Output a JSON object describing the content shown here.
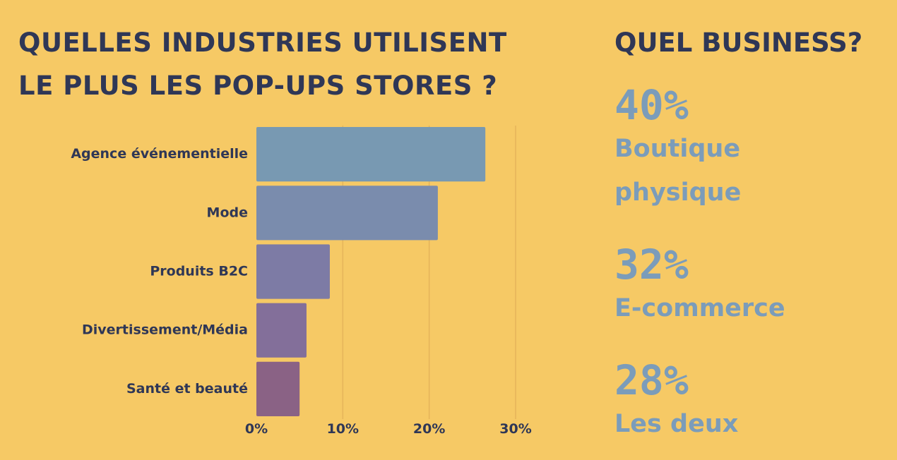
{
  "colors": {
    "background": "#f6c965",
    "title": "#2f3756",
    "axis_text": "#2f3756",
    "stat_text": "#7b9cba",
    "gridline": "#e5b45a"
  },
  "title_lines": [
    "QUELLES INDUSTRIES UTILISENT",
    "LE PLUS LES POP-UPS STORES ?"
  ],
  "side": {
    "title": "QUEL BUSINESS?",
    "stats": [
      {
        "value": "40%",
        "label": "Boutique\nphysique"
      },
      {
        "value": "32%",
        "label": "E-commerce"
      },
      {
        "value": "28%",
        "label": "Les deux"
      }
    ]
  },
  "chart_data": {
    "type": "bar",
    "orientation": "horizontal",
    "categories": [
      "Agence événementielle",
      "Mode",
      "Produits B2C",
      "Divertissement/Média",
      "Santé et beauté"
    ],
    "values": [
      26.5,
      21,
      8.5,
      5.8,
      5
    ],
    "xlim": [
      0,
      30
    ],
    "xticks": [
      "0%",
      "10%",
      "20%",
      "30%"
    ],
    "bar_colors": [
      "#7899b2",
      "#7a8cad",
      "#7d7ba5",
      "#836f9a",
      "#8a6285"
    ],
    "grid": true
  }
}
